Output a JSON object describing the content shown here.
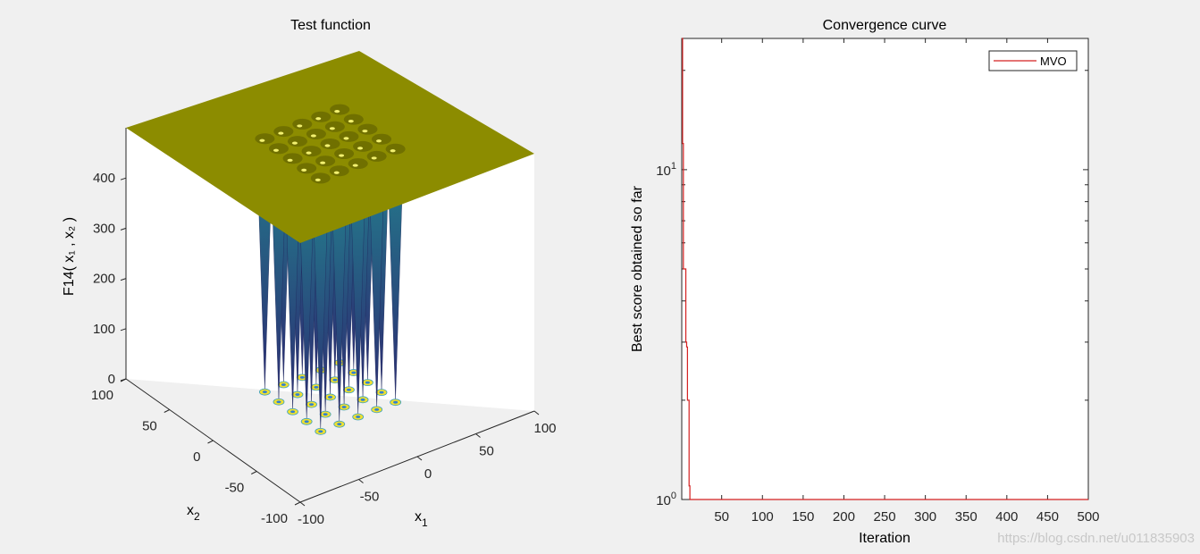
{
  "watermark": "https://blog.csdn.net/u011835903",
  "colors": {
    "background": "#f0f0f0",
    "plane": "#8c8c00",
    "well_top": "#23818e",
    "well_bottom": "#2c2c72",
    "ring": "#f0e030",
    "series_line": "#d42020"
  },
  "chart_data": [
    {
      "type": "surface3d",
      "title": "Test function",
      "zlabel": "F14( x₁ , x₂ )",
      "xlabel": "x",
      "xlabel_sub": "1",
      "ylabel": "x",
      "ylabel_sub": "2",
      "x_ticks": [
        "-100",
        "-50",
        "0",
        "50",
        "100"
      ],
      "y_ticks": [
        "-100",
        "-50",
        "0",
        "50",
        "100"
      ],
      "z_ticks": [
        "0",
        "100",
        "200",
        "300",
        "400"
      ],
      "xlim": [
        -100,
        100
      ],
      "ylim": [
        -100,
        100
      ],
      "zlim": [
        0,
        500
      ],
      "plane_value": 500,
      "wells": {
        "grid_x": [
          -32,
          -16,
          0,
          16,
          32
        ],
        "grid_y": [
          -32,
          -16,
          0,
          16,
          32
        ],
        "min_value": 1
      }
    },
    {
      "type": "line",
      "title": "Convergence curve",
      "xlabel": "Iteration",
      "ylabel": "Best score obtained so far",
      "yscale": "log",
      "xlim": [
        1,
        500
      ],
      "ylim": [
        1,
        25
      ],
      "x_ticks": [
        "50",
        "100",
        "150",
        "200",
        "250",
        "300",
        "350",
        "400",
        "450",
        "500"
      ],
      "y_tick_base": "10",
      "y_ticks_exp": [
        "0",
        "1"
      ],
      "legend": {
        "placement": "top-right",
        "entries": [
          "MVO"
        ]
      },
      "series": [
        {
          "name": "MVO",
          "x": [
            1,
            2,
            3,
            4,
            5,
            6,
            7,
            8,
            9,
            10,
            11,
            12,
            13,
            500
          ],
          "y": [
            25,
            12,
            5.0,
            5.0,
            5.0,
            3.0,
            2.9,
            2.0,
            2.0,
            1.1,
            1.0,
            1.0,
            1.0,
            1.0
          ]
        }
      ]
    }
  ]
}
